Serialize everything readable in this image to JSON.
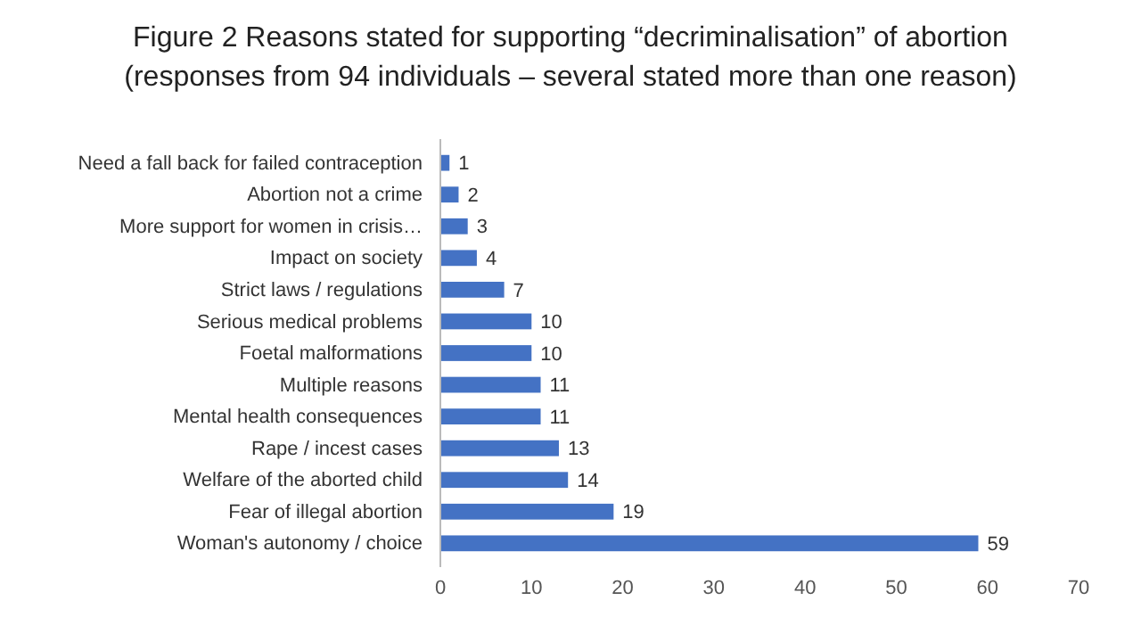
{
  "chart_data": {
    "type": "bar",
    "orientation": "horizontal",
    "title": "Figure 2     Reasons stated for supporting “decriminalisation” of abortion",
    "subtitle": "(responses from 94 individuals – several stated more than one reason)",
    "categories": [
      "Need a fall back for failed contraception",
      "Abortion not a crime",
      "More support for women in crisis…",
      "Impact on society",
      "Strict laws / regulations",
      "Serious medical problems",
      "Foetal malformations",
      "Multiple reasons",
      "Mental health consequences",
      "Rape / incest cases",
      "Welfare of the aborted child",
      "Fear of illegal abortion",
      "Woman's autonomy / choice"
    ],
    "values": [
      1,
      2,
      3,
      4,
      7,
      10,
      10,
      11,
      11,
      13,
      14,
      19,
      59
    ],
    "color": "#4472c4",
    "xlim": [
      0,
      70
    ],
    "xticks": [
      0,
      10,
      20,
      30,
      40,
      50,
      60,
      70
    ],
    "data_labels": true
  }
}
